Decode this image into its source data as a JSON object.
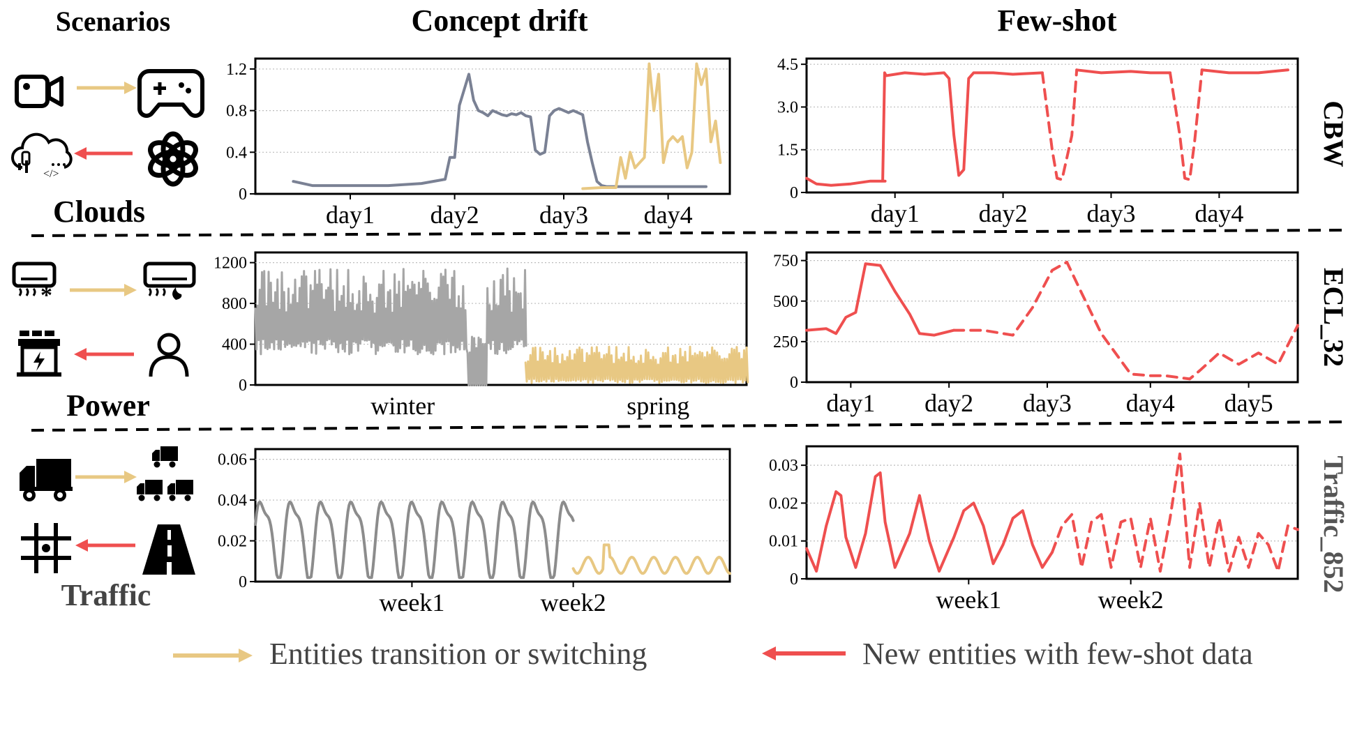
{
  "headers": {
    "scenarios": "Scenarios",
    "concept_drift": "Concept drift",
    "few_shot": "Few-shot"
  },
  "row_labels": [
    "Clouds",
    "Power",
    "Traffic"
  ],
  "dataset_labels": [
    "CBW",
    "ECL_32",
    "Traffic_852"
  ],
  "legend": {
    "transition": "Entities transition or switching",
    "few_shot": "New entities with few-shot data"
  },
  "colors": {
    "gray_blue": "#7a8194",
    "gray": "#a6a6a6",
    "gold": "#e8c883",
    "red": "#ef4f4f",
    "dark_gray": "#8c8c8c"
  },
  "icons": {
    "clouds": [
      "video-camera-icon",
      "gamepad-icon",
      "cloud-code-icon",
      "openai-logo-icon"
    ],
    "power": [
      "air-conditioner-cool-icon",
      "air-conditioner-heat-icon",
      "power-station-icon",
      "person-icon"
    ],
    "traffic": [
      "truck-icon",
      "truck-fleet-icon",
      "grid-location-icon",
      "road-icon"
    ]
  },
  "chart_data": [
    {
      "id": "cbw-drift",
      "type": "line",
      "ylim": [
        0,
        1.3
      ],
      "yticks": [
        0,
        0.4,
        0.8,
        1.2
      ],
      "ytick_labels": [
        "0",
        "0.4",
        "0.8",
        "1.2"
      ],
      "xlim": [
        0,
        100
      ],
      "xticks": [
        20,
        42,
        65,
        87
      ],
      "xtick_labels": [
        "day1",
        "day2",
        "day3",
        "day4"
      ],
      "series": [
        {
          "color": "gray_blue",
          "dashed": false,
          "x": [
            8,
            12,
            20,
            28,
            35,
            40,
            41,
            42,
            43,
            44,
            45,
            46,
            47,
            48,
            49,
            50,
            51,
            52,
            53,
            54,
            55,
            56,
            57,
            58,
            59,
            60,
            61,
            62,
            63,
            64,
            65,
            66,
            67,
            68,
            69,
            70,
            71,
            72,
            73,
            74,
            75,
            76,
            77,
            78,
            79,
            80,
            81,
            82,
            83,
            84,
            85,
            86,
            87,
            88,
            89,
            90,
            91,
            92,
            93,
            94,
            95
          ],
          "y": [
            0.12,
            0.08,
            0.08,
            0.08,
            0.1,
            0.14,
            0.35,
            0.35,
            0.85,
            1.0,
            1.15,
            0.9,
            0.8,
            0.78,
            0.75,
            0.8,
            0.78,
            0.76,
            0.75,
            0.77,
            0.76,
            0.78,
            0.75,
            0.74,
            0.42,
            0.38,
            0.4,
            0.75,
            0.8,
            0.82,
            0.8,
            0.78,
            0.8,
            0.78,
            0.76,
            0.5,
            0.3,
            0.12,
            0.08,
            0.07,
            0.07,
            0.07,
            0.07,
            0.07,
            0.07,
            0.07,
            0.07,
            0.07,
            0.07,
            0.07,
            0.07,
            0.07,
            0.07,
            0.07,
            0.07,
            0.07,
            0.07,
            0.07,
            0.07,
            0.07,
            0.07
          ]
        }
      ]
    },
    {
      "id": "cbw-drift-tail",
      "type": "line",
      "ylim": [
        0,
        1.3
      ],
      "xlim": [
        0,
        100
      ],
      "series": [
        {
          "color": "gold",
          "dashed": false,
          "x": [
            69,
            73,
            76,
            77,
            78,
            79,
            80,
            81,
            82,
            83,
            84,
            85,
            86,
            87,
            88,
            89,
            90,
            91,
            92,
            93,
            94,
            95,
            96,
            97,
            98
          ],
          "y": [
            0.05,
            0.06,
            0.06,
            0.35,
            0.15,
            0.4,
            0.25,
            0.3,
            0.35,
            1.25,
            0.8,
            1.15,
            0.3,
            0.5,
            0.55,
            0.5,
            0.55,
            0.25,
            0.4,
            1.25,
            1.05,
            1.2,
            0.5,
            0.7,
            0.3
          ]
        }
      ]
    },
    {
      "id": "cbw-fewshot",
      "type": "line",
      "ylim": [
        0,
        4.7
      ],
      "yticks": [
        0,
        1.5,
        3.0,
        4.5
      ],
      "ytick_labels": [
        "0",
        "1.5",
        "3.0",
        "4.5"
      ],
      "xlim": [
        0,
        100
      ],
      "xticks": [
        18,
        40,
        62,
        84
      ],
      "xtick_labels": [
        "day1",
        "day2",
        "day3",
        "day4"
      ],
      "series": [
        {
          "color": "red",
          "dashed": false,
          "x": [
            0,
            2,
            5,
            9,
            13,
            16,
            15.5,
            15.9,
            16.2,
            20,
            24,
            28,
            29,
            30,
            31,
            32,
            33,
            34,
            38,
            42,
            48
          ],
          "y": [
            0.5,
            0.3,
            0.25,
            0.3,
            0.4,
            0.4,
            0.4,
            4.2,
            4.1,
            4.2,
            4.15,
            4.2,
            4.0,
            2.0,
            0.6,
            0.8,
            4.0,
            4.2,
            4.2,
            4.15,
            4.2
          ]
        },
        {
          "color": "red",
          "dashed": true,
          "x": [
            48,
            50,
            51,
            52,
            54,
            55
          ],
          "y": [
            4.2,
            1.5,
            0.5,
            0.45,
            2.0,
            4.3
          ]
        },
        {
          "color": "red",
          "dashed": false,
          "x": [
            55,
            60,
            66,
            70,
            74
          ],
          "y": [
            4.3,
            4.2,
            4.25,
            4.2,
            4.2
          ]
        },
        {
          "color": "red",
          "dashed": true,
          "x": [
            74,
            76,
            77,
            78,
            79,
            80.5
          ],
          "y": [
            4.2,
            2.0,
            0.5,
            0.45,
            1.8,
            4.3
          ]
        },
        {
          "color": "red",
          "dashed": false,
          "x": [
            80.5,
            86,
            92,
            98
          ],
          "y": [
            4.3,
            4.2,
            4.2,
            4.3
          ]
        }
      ]
    },
    {
      "id": "ecl-drift",
      "type": "line",
      "ylim": [
        0,
        1300
      ],
      "yticks": [
        0,
        400,
        800,
        1200
      ],
      "ytick_labels": [
        "0",
        "400",
        "800",
        "1200"
      ],
      "xlim": [
        0,
        100
      ],
      "xticks": [],
      "xtick_labels": [],
      "xlabels_text": [
        "winter",
        "spring"
      ],
      "xlabels_pos": [
        30,
        82
      ],
      "series": [
        {
          "color": "gray",
          "dashed": false,
          "kind": "noise_gray",
          "x": [
            0,
            55
          ],
          "y": [
            600,
            600
          ]
        },
        {
          "color": "gold",
          "dashed": false,
          "kind": "noise_gold",
          "x": [
            55,
            100
          ],
          "y": [
            150,
            150
          ]
        }
      ]
    },
    {
      "id": "ecl-fewshot",
      "type": "line",
      "ylim": [
        0,
        800
      ],
      "yticks": [
        0,
        250,
        500,
        750
      ],
      "ytick_labels": [
        "0",
        "250",
        "500",
        "750"
      ],
      "xlim": [
        0,
        100
      ],
      "xticks": [
        9,
        29,
        49,
        70,
        90
      ],
      "xtick_labels": [
        "day1",
        "day2",
        "day3",
        "day4",
        "day5"
      ],
      "series": [
        {
          "color": "red",
          "dashed": false,
          "x": [
            0,
            4,
            6,
            8,
            10,
            12,
            15,
            18,
            21,
            23,
            26,
            30
          ],
          "y": [
            320,
            330,
            300,
            400,
            430,
            730,
            720,
            560,
            420,
            300,
            290,
            320
          ]
        },
        {
          "color": "red",
          "dashed": true,
          "x": [
            30,
            36,
            42,
            46,
            50,
            53,
            56,
            60,
            66,
            70,
            73,
            78,
            80,
            84,
            88,
            92,
            96,
            100
          ],
          "y": [
            320,
            320,
            290,
            460,
            690,
            740,
            550,
            300,
            50,
            40,
            40,
            20,
            70,
            180,
            110,
            180,
            110,
            350
          ]
        }
      ]
    },
    {
      "id": "traffic-drift",
      "type": "line",
      "ylim": [
        0,
        0.065
      ],
      "yticks": [
        0,
        0.02,
        0.04,
        0.06
      ],
      "ytick_labels": [
        "0",
        "0.02",
        "0.04",
        "0.06"
      ],
      "xlim": [
        0,
        100
      ],
      "xticks": [
        33,
        67
      ],
      "xtick_labels": [
        "week1",
        "week2"
      ],
      "series": [
        {
          "color": "dark_gray",
          "dashed": false,
          "kind": "wave_gray",
          "x": [
            0,
            67
          ],
          "y": [
            0.025,
            0.025
          ]
        },
        {
          "color": "gold",
          "dashed": false,
          "kind": "wave_gold",
          "x": [
            67,
            100
          ],
          "y": [
            0.008,
            0.008
          ]
        }
      ]
    },
    {
      "id": "traffic-fewshot",
      "type": "line",
      "ylim": [
        0,
        0.035
      ],
      "yticks": [
        0,
        0.01,
        0.02,
        0.03
      ],
      "ytick_labels": [
        "0",
        "0.01",
        "0.02",
        "0.03"
      ],
      "xlim": [
        0,
        100
      ],
      "xticks": [
        33,
        66
      ],
      "xtick_labels": [
        "week1",
        "week2"
      ],
      "series": [
        {
          "color": "red",
          "dashed": false,
          "x": [
            0,
            2,
            4,
            6,
            7,
            8,
            10,
            12,
            14,
            15,
            16,
            18,
            21,
            23,
            25,
            27,
            30,
            32,
            34,
            36,
            38,
            40,
            42,
            44,
            46,
            48,
            50
          ],
          "y": [
            0.008,
            0.002,
            0.014,
            0.023,
            0.022,
            0.011,
            0.003,
            0.012,
            0.027,
            0.028,
            0.015,
            0.003,
            0.012,
            0.022,
            0.01,
            0.002,
            0.011,
            0.018,
            0.02,
            0.014,
            0.004,
            0.009,
            0.016,
            0.018,
            0.009,
            0.003,
            0.007
          ]
        },
        {
          "color": "red",
          "dashed": true,
          "x": [
            50,
            52,
            54,
            56,
            58,
            60,
            62,
            64,
            66,
            68,
            70,
            72,
            74,
            76,
            78,
            80,
            82,
            84,
            86,
            88,
            90,
            92,
            94,
            96,
            98,
            100
          ],
          "y": [
            0.007,
            0.014,
            0.017,
            0.003,
            0.015,
            0.017,
            0.003,
            0.015,
            0.016,
            0.003,
            0.016,
            0.002,
            0.016,
            0.033,
            0.003,
            0.02,
            0.003,
            0.016,
            0.002,
            0.011,
            0.003,
            0.012,
            0.009,
            0.002,
            0.014,
            0.013
          ]
        }
      ]
    }
  ]
}
